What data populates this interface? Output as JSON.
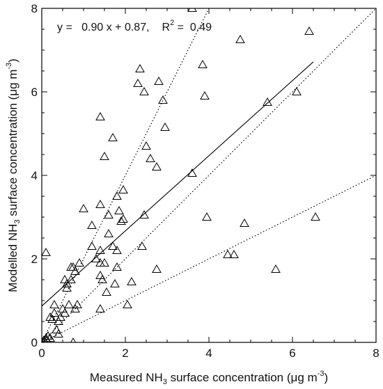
{
  "chart_data": {
    "type": "scatter",
    "x_label": {
      "pre": "Measured NH",
      "sub": "3",
      "post": " surface concentration (",
      "mu": "μ",
      "unit": "g m",
      "sup": "-3",
      "close": ")"
    },
    "y_label": {
      "pre": "Modelled NH",
      "sub": "3",
      "post": " surface concentration (",
      "mu": "μ",
      "unit": "g m",
      "sup": "-3",
      "close": ")"
    },
    "xlim": [
      0,
      8
    ],
    "ylim": [
      0,
      8
    ],
    "x_ticks": [
      "0",
      "2",
      "4",
      "6",
      "8"
    ],
    "y_ticks": [
      "0",
      "2",
      "4",
      "6",
      "8"
    ],
    "grid": false,
    "annotation": {
      "eq": "y =   0.90 x + 0.87,",
      "r2_label": "R",
      "r2_sup": "2",
      "r2_value": " =  0.49"
    },
    "fit_line": {
      "slope": 0.9,
      "intercept": 0.87,
      "x_range": [
        0,
        6.5
      ]
    },
    "reference_lines": [
      {
        "slope": 2.0,
        "intercept": 0
      },
      {
        "slope": 1.0,
        "intercept": 0
      },
      {
        "slope": 0.5,
        "intercept": 0
      }
    ],
    "marker": "open-triangle",
    "points": [
      [
        0.0,
        0.0
      ],
      [
        0.05,
        0.05
      ],
      [
        0.1,
        0.1
      ],
      [
        0.12,
        0.05
      ],
      [
        0.15,
        0.15
      ],
      [
        0.2,
        0.1
      ],
      [
        0.1,
        2.15
      ],
      [
        0.2,
        0.6
      ],
      [
        0.25,
        0.55
      ],
      [
        0.3,
        0.7
      ],
      [
        0.3,
        0.9
      ],
      [
        0.35,
        0.3
      ],
      [
        0.4,
        0.2
      ],
      [
        0.4,
        0.5
      ],
      [
        0.45,
        0.6
      ],
      [
        0.5,
        0.8
      ],
      [
        0.55,
        0.7
      ],
      [
        0.55,
        1.5
      ],
      [
        0.6,
        1.3
      ],
      [
        0.6,
        1.4
      ],
      [
        0.65,
        0.9
      ],
      [
        0.7,
        1.8
      ],
      [
        0.7,
        1.5
      ],
      [
        0.75,
        1.8
      ],
      [
        0.75,
        0.0
      ],
      [
        0.8,
        0.8
      ],
      [
        0.8,
        1.7
      ],
      [
        0.85,
        0.9
      ],
      [
        0.9,
        1.9
      ],
      [
        1.0,
        3.2
      ],
      [
        1.2,
        2.3
      ],
      [
        1.2,
        2.8
      ],
      [
        1.3,
        2.0
      ],
      [
        1.4,
        0.8
      ],
      [
        1.4,
        1.6
      ],
      [
        1.4,
        1.9
      ],
      [
        1.4,
        2.2
      ],
      [
        1.4,
        3.3
      ],
      [
        1.4,
        5.4
      ],
      [
        1.45,
        1.5
      ],
      [
        1.5,
        1.9
      ],
      [
        1.5,
        4.45
      ],
      [
        1.55,
        1.2
      ],
      [
        1.6,
        2.6
      ],
      [
        1.6,
        3.05
      ],
      [
        1.7,
        2.3
      ],
      [
        1.7,
        4.9
      ],
      [
        1.75,
        1.4
      ],
      [
        1.8,
        1.8
      ],
      [
        1.8,
        2.2
      ],
      [
        1.8,
        3.5
      ],
      [
        1.85,
        3.15
      ],
      [
        1.9,
        2.9
      ],
      [
        1.95,
        2.95
      ],
      [
        1.95,
        3.65
      ],
      [
        2.05,
        0.9
      ],
      [
        2.15,
        1.45
      ],
      [
        2.3,
        6.2
      ],
      [
        2.35,
        6.55
      ],
      [
        2.4,
        2.3
      ],
      [
        2.45,
        6.0
      ],
      [
        2.45,
        3.05
      ],
      [
        2.5,
        4.7
      ],
      [
        2.6,
        4.4
      ],
      [
        2.75,
        1.75
      ],
      [
        2.75,
        4.2
      ],
      [
        2.8,
        6.25
      ],
      [
        2.9,
        5.8
      ],
      [
        2.95,
        5.15
      ],
      [
        3.6,
        8.0
      ],
      [
        3.6,
        4.05
      ],
      [
        3.85,
        6.65
      ],
      [
        3.9,
        5.9
      ],
      [
        3.95,
        3.0
      ],
      [
        4.45,
        2.1
      ],
      [
        4.6,
        2.1
      ],
      [
        4.75,
        7.25
      ],
      [
        4.85,
        2.85
      ],
      [
        5.4,
        5.75
      ],
      [
        5.6,
        1.75
      ],
      [
        6.1,
        6.0
      ],
      [
        6.4,
        7.45
      ],
      [
        6.55,
        3.0
      ]
    ]
  }
}
